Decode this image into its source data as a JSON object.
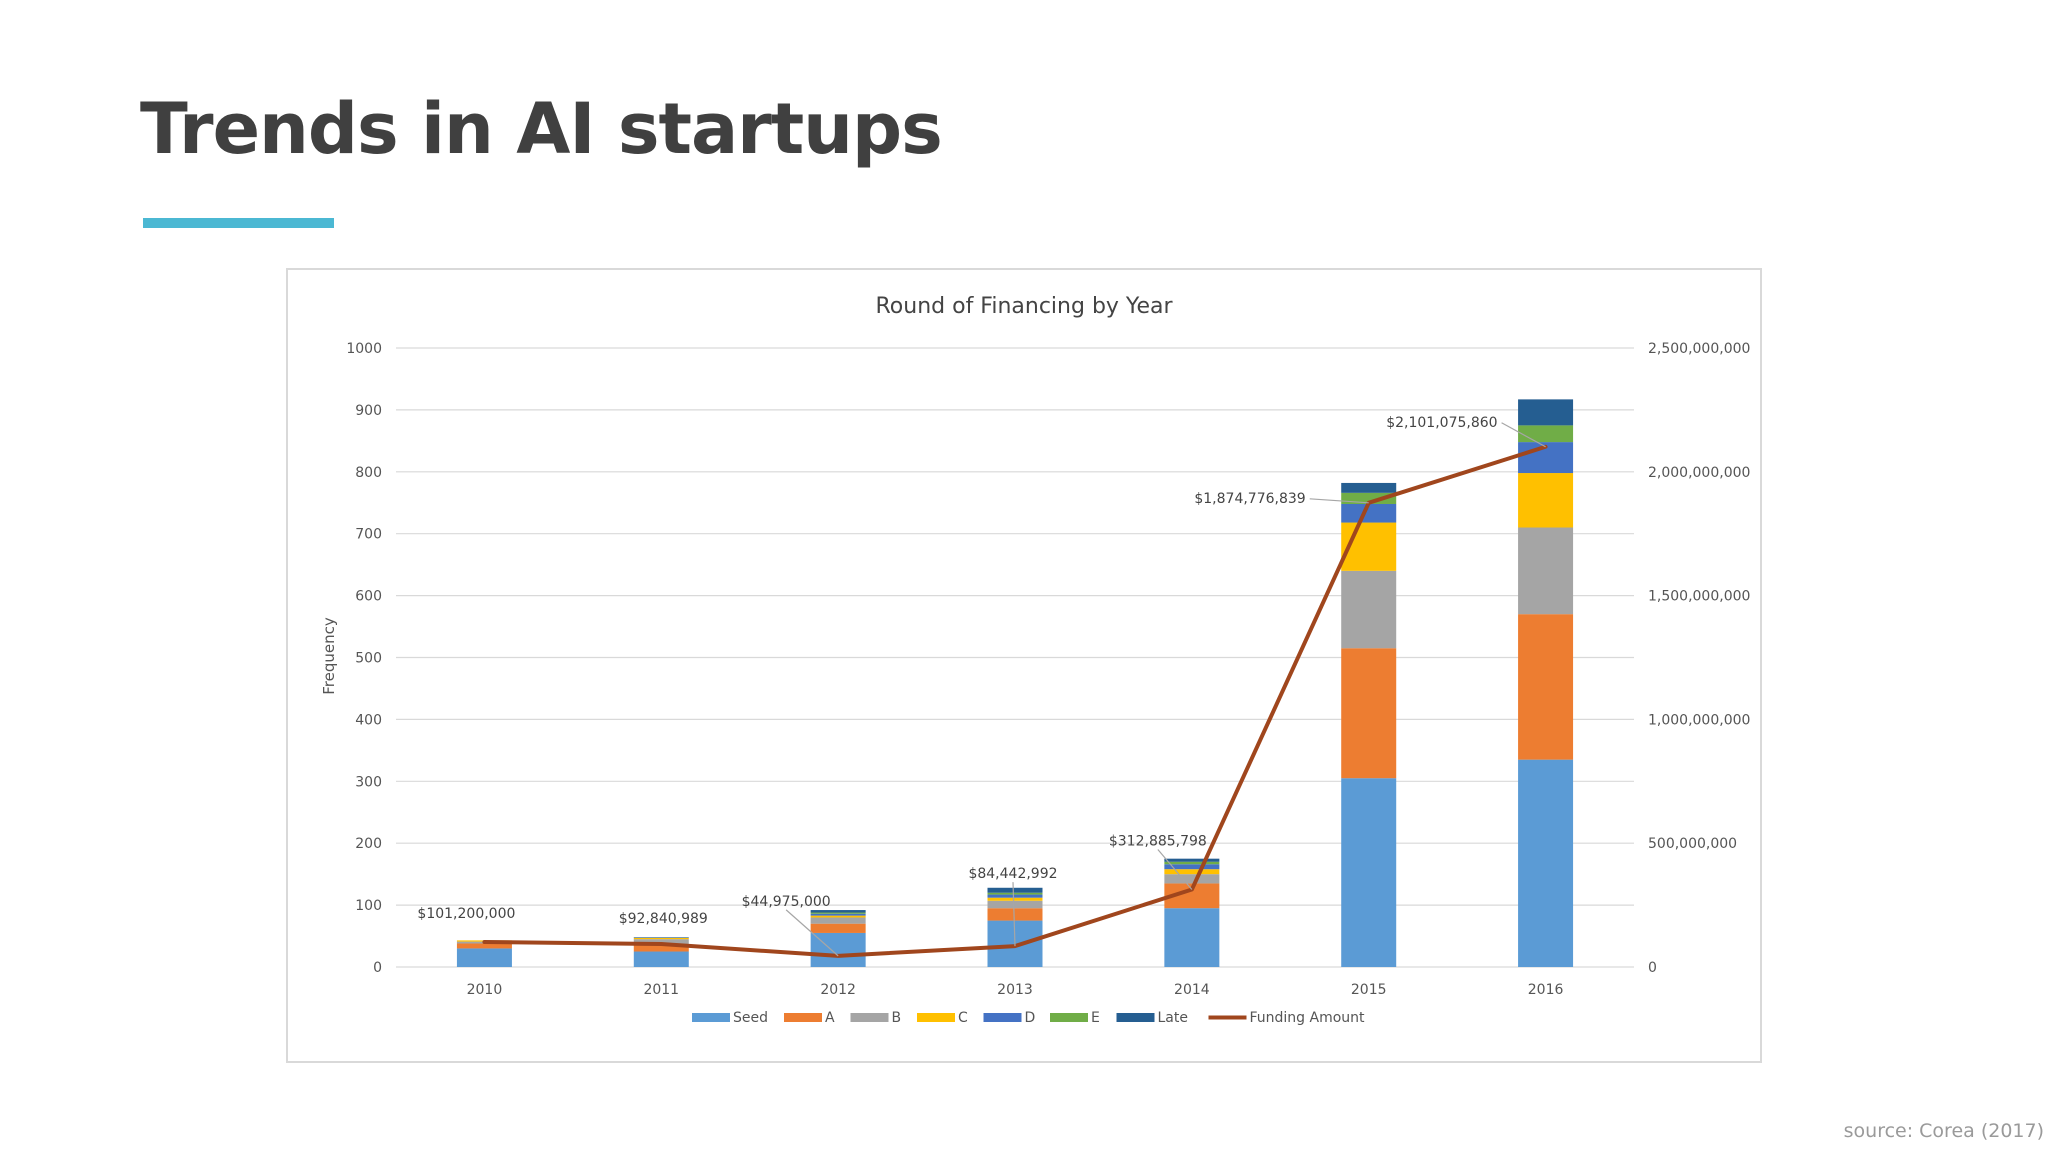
{
  "slide": {
    "title": "Trends in AI startups",
    "source": "source: Corea (2017)"
  },
  "colors": {
    "accent_underline": "#4bb8d3",
    "title_text": "#404040"
  },
  "chart_data": {
    "type": "bar",
    "stacked": true,
    "title": "Round of Financing by Year",
    "ylabel": "Frequency",
    "xlabel": "",
    "categories": [
      "2010",
      "2011",
      "2012",
      "2013",
      "2014",
      "2015",
      "2016"
    ],
    "ylim": [
      0,
      1000
    ],
    "y_ticks": [
      "0",
      "100",
      "200",
      "300",
      "400",
      "500",
      "600",
      "700",
      "800",
      "900",
      "1000"
    ],
    "y2lim": [
      0,
      2500000000
    ],
    "y2_ticks": [
      "0",
      "500,000,000",
      "1,000,000,000",
      "1,500,000,000",
      "2,000,000,000",
      "2,500,000,000"
    ],
    "grid": true,
    "legend_position": "bottom",
    "series": [
      {
        "name": "Seed",
        "color": "#5b9bd5",
        "values": [
          30,
          25,
          55,
          75,
          95,
          305,
          335
        ]
      },
      {
        "name": "A",
        "color": "#ed7d31",
        "values": [
          8,
          12,
          15,
          20,
          40,
          210,
          235
        ]
      },
      {
        "name": "B",
        "color": "#a5a5a5",
        "values": [
          3,
          8,
          10,
          12,
          15,
          125,
          140
        ]
      },
      {
        "name": "C",
        "color": "#ffc000",
        "values": [
          2,
          2,
          3,
          5,
          8,
          78,
          88
        ]
      },
      {
        "name": "D",
        "color": "#4472c4",
        "values": [
          0,
          0,
          3,
          5,
          8,
          30,
          50
        ]
      },
      {
        "name": "E",
        "color": "#70ad47",
        "values": [
          0,
          0,
          2,
          3,
          4,
          18,
          27
        ]
      },
      {
        "name": "Late",
        "color": "#255e91",
        "values": [
          0,
          1,
          4,
          8,
          5,
          16,
          42
        ]
      }
    ],
    "line_series": {
      "name": "Funding Amount",
      "color": "#a0461d",
      "axis": "secondary",
      "values": [
        101200000,
        92840989,
        44975000,
        84442992,
        312885798,
        1874776839,
        2101075860
      ],
      "labels": [
        "$101,200,000",
        "$92,840,989",
        "$44,975,000",
        "$84,442,992",
        "$312,885,798",
        "$1,874,776,839",
        "$2,101,075,860"
      ]
    }
  }
}
